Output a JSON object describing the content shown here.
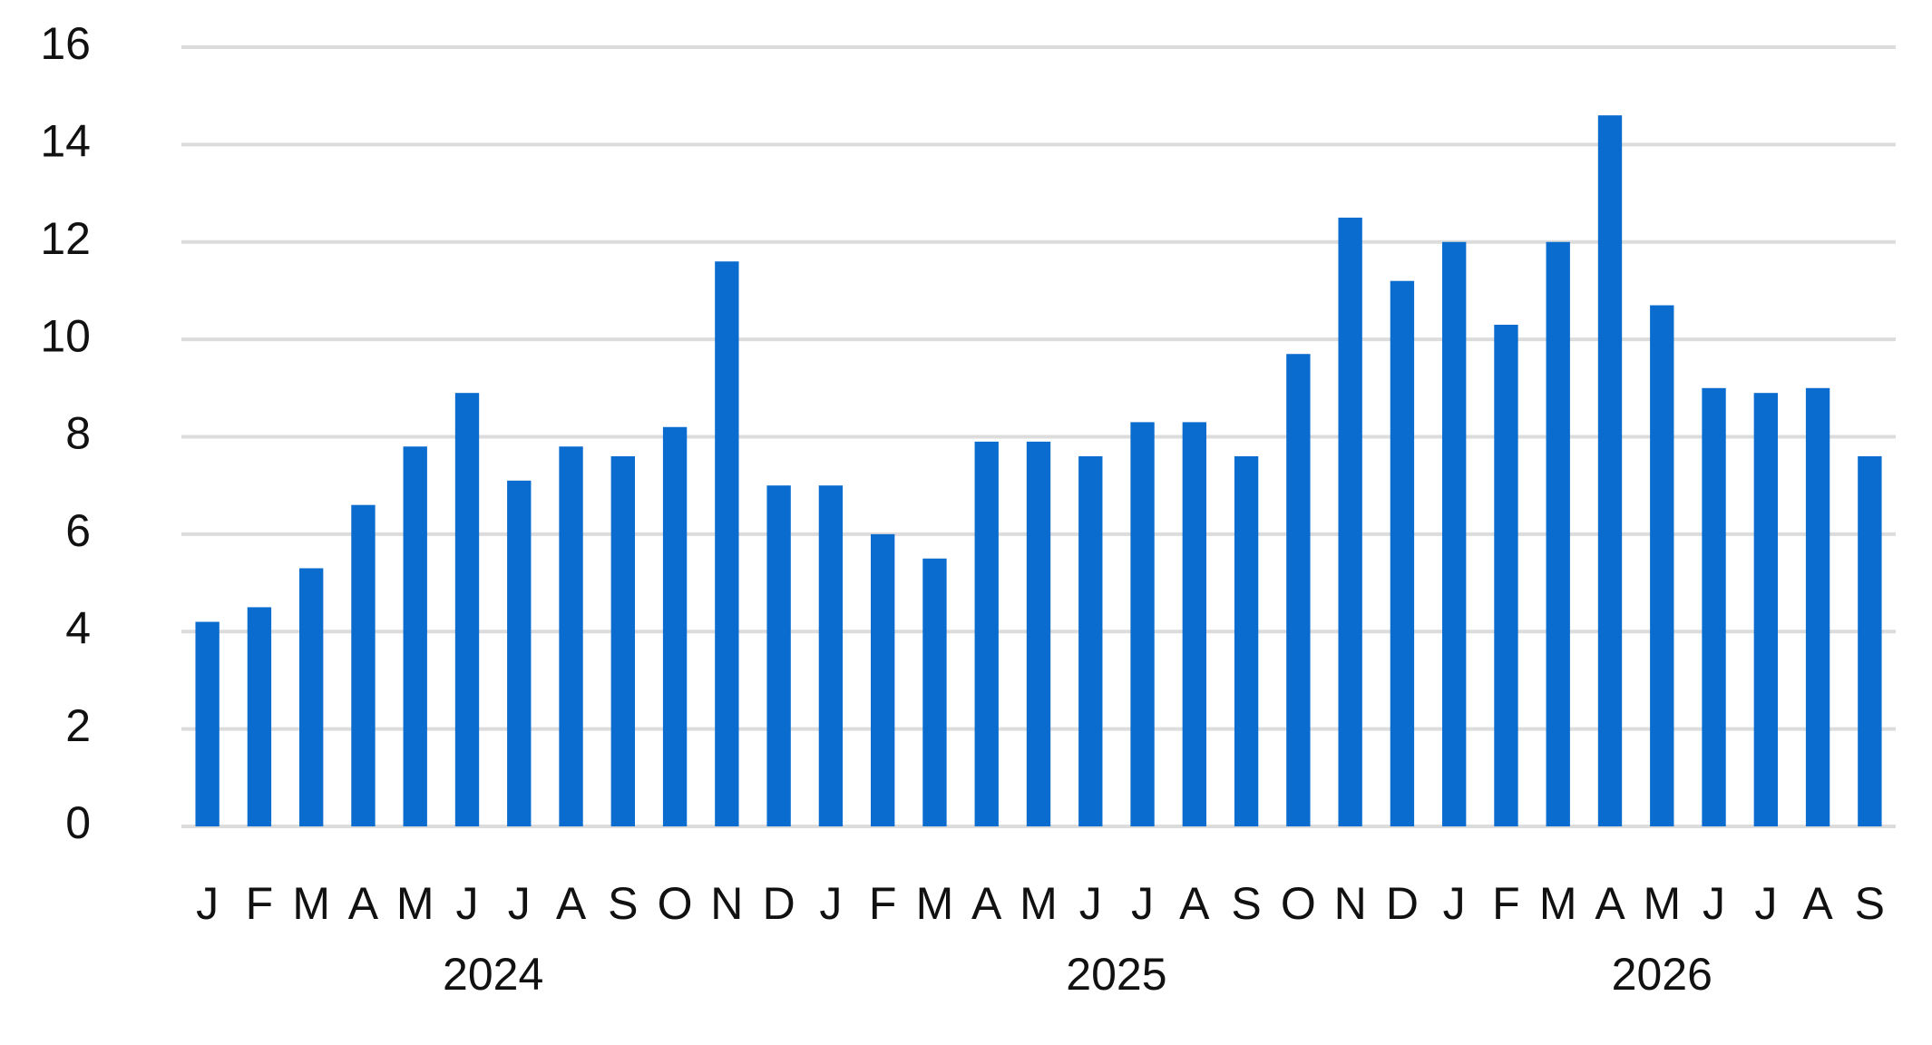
{
  "chart_data": {
    "type": "bar",
    "categories": [
      "J",
      "F",
      "M",
      "A",
      "M",
      "J",
      "J",
      "A",
      "S",
      "O",
      "N",
      "D",
      "J",
      "F",
      "M",
      "A",
      "M",
      "J",
      "J",
      "A",
      "S",
      "O",
      "N",
      "D",
      "J",
      "F",
      "M",
      "A",
      "M",
      "J",
      "J",
      "A",
      "S"
    ],
    "category_groups": [
      {
        "label": "2024",
        "count": 12
      },
      {
        "label": "2025",
        "count": 12
      },
      {
        "label": "2026",
        "count": 9
      }
    ],
    "values": [
      4.2,
      4.5,
      5.3,
      6.6,
      7.8,
      8.9,
      7.1,
      7.8,
      7.6,
      8.2,
      11.6,
      7.0,
      7.0,
      6.0,
      5.5,
      7.9,
      7.9,
      7.6,
      8.3,
      8.3,
      7.6,
      9.7,
      12.5,
      11.2,
      12.0,
      10.3,
      12.0,
      14.6,
      10.7,
      9.0,
      8.9,
      9.0,
      7.6
    ],
    "color": "#0a6cce",
    "ylim": [
      0,
      16
    ],
    "yticks": [
      0,
      2,
      4,
      6,
      8,
      10,
      12,
      14,
      16
    ],
    "grid": true
  }
}
